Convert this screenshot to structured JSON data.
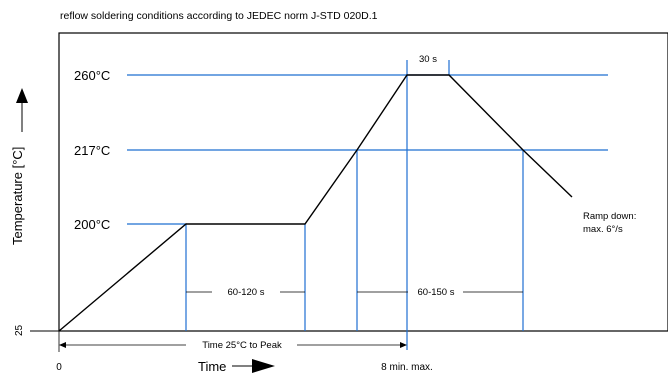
{
  "title": "reflow soldering conditions according to JEDEC norm J-STD 020D.1",
  "y_axis": {
    "label": "Temperature [°C]",
    "base_label": "25"
  },
  "x_axis": {
    "label": "Time",
    "zero_label": "0",
    "end_label": "8 min. max."
  },
  "levels": [
    {
      "name": "peak",
      "label": "260°C",
      "value": 260
    },
    {
      "name": "liquidus",
      "label": "217°C",
      "value": 217
    },
    {
      "name": "soak",
      "label": "200°C",
      "value": 200
    }
  ],
  "durations": {
    "peak_hold": "30 s",
    "soak": "60-120 s",
    "above_liquidus": "60-150 s",
    "total": "Time 25°C to Peak"
  },
  "ramp_down": {
    "line1": "Ramp down:",
    "line2": "max. 6°/s"
  },
  "colors": {
    "guide": "#1e6fd1",
    "profile": "#000000",
    "frame": "#000000"
  },
  "chart_data": {
    "type": "line",
    "title": "reflow soldering conditions according to JEDEC norm J-STD 020D.1",
    "xlabel": "Time",
    "ylabel": "Temperature [°C]",
    "series": [
      {
        "temperatures": [
          25,
          200,
          200,
          217,
          260,
          260,
          217
        ]
      }
    ],
    "reference_lines": [
      260,
      217,
      200
    ],
    "annotations": [
      "30 s",
      "60-120 s",
      "60-150 s",
      "Time 25°C to Peak",
      "Ramp down:",
      "max. 6°/s",
      "8 min. max."
    ]
  }
}
